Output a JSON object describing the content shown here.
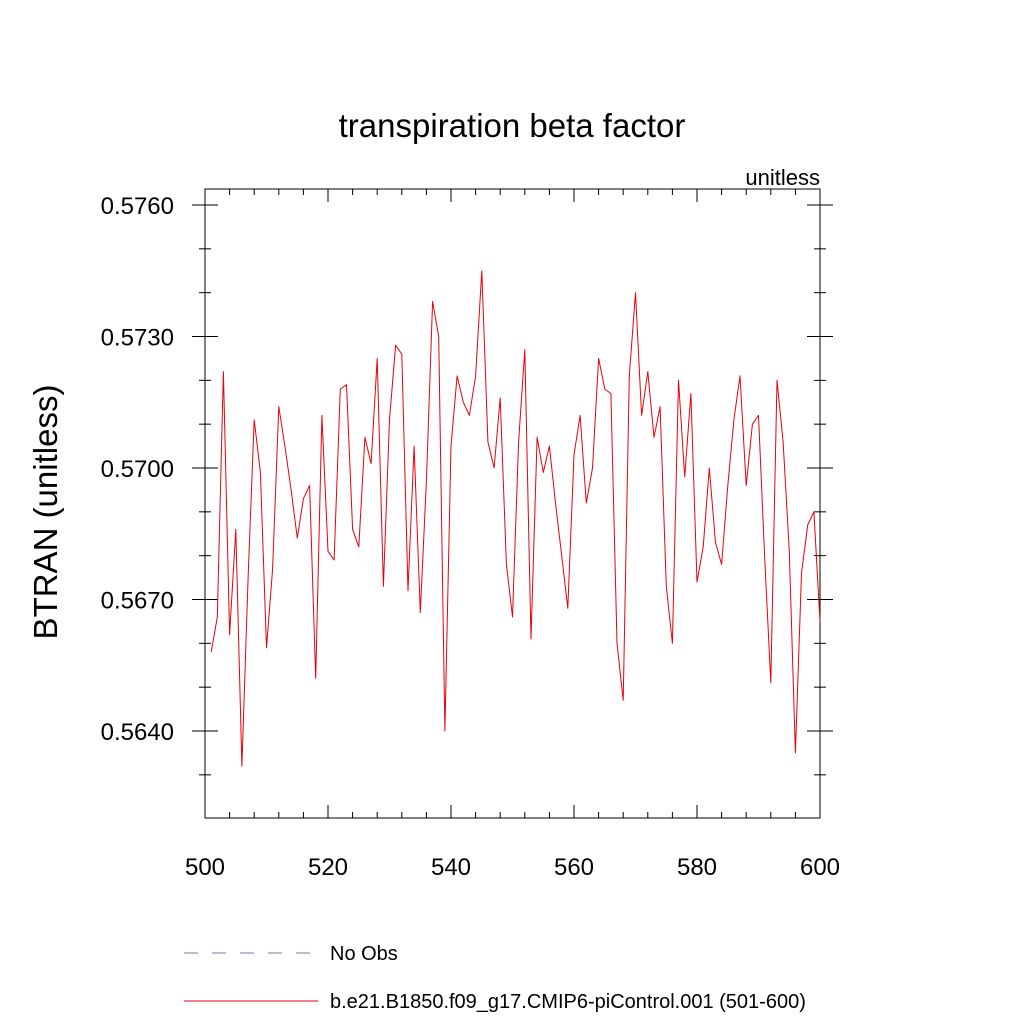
{
  "chart_data": {
    "type": "line",
    "title": "transpiration beta factor",
    "units_label": "unitless",
    "ylabel": "BTRAN  (unitless)",
    "xlabel": "",
    "xlim": [
      500,
      600
    ],
    "ylim": [
      0.562,
      0.5764
    ],
    "x_ticks": [
      500,
      520,
      540,
      560,
      580,
      600
    ],
    "x_tick_labels": [
      "500",
      "520",
      "540",
      "560",
      "580",
      "600"
    ],
    "x_minor_step": 4,
    "y_ticks": [
      0.564,
      0.567,
      0.57,
      0.573,
      0.576
    ],
    "y_tick_labels": [
      "0.5640",
      "0.5670",
      "0.5700",
      "0.5730",
      "0.5760"
    ],
    "y_minor_step": 0.001,
    "grid": false,
    "legend_position": "bottom",
    "legend": [
      {
        "label": "No Obs",
        "color": "#7b74b8",
        "style": "dashed"
      },
      {
        "label": "b.e21.B1850.f09_g17.CMIP6-piControl.001 (501-600)",
        "color": "#e8000b",
        "style": "solid"
      }
    ],
    "series": [
      {
        "name": "b.e21.B1850.f09_g17.CMIP6-piControl.001 (501-600)",
        "color": "#e8000b",
        "x": [
          501,
          502,
          503,
          504,
          505,
          506,
          507,
          508,
          509,
          510,
          511,
          512,
          513,
          514,
          515,
          516,
          517,
          518,
          519,
          520,
          521,
          522,
          523,
          524,
          525,
          526,
          527,
          528,
          529,
          530,
          531,
          532,
          533,
          534,
          535,
          536,
          537,
          538,
          539,
          540,
          541,
          542,
          543,
          544,
          545,
          546,
          547,
          548,
          549,
          550,
          551,
          552,
          553,
          554,
          555,
          556,
          557,
          558,
          559,
          560,
          561,
          562,
          563,
          564,
          565,
          566,
          567,
          568,
          569,
          570,
          571,
          572,
          573,
          574,
          575,
          576,
          577,
          578,
          579,
          580,
          581,
          582,
          583,
          584,
          585,
          586,
          587,
          588,
          589,
          590,
          591,
          592,
          593,
          594,
          595,
          596,
          597,
          598,
          599,
          600
        ],
        "y": [
          0.5658,
          0.5666,
          0.5722,
          0.5662,
          0.5686,
          0.5632,
          0.5675,
          0.5711,
          0.5699,
          0.5659,
          0.5677,
          0.5714,
          0.5705,
          0.5695,
          0.5684,
          0.5693,
          0.5696,
          0.5652,
          0.5712,
          0.5681,
          0.5679,
          0.5718,
          0.5719,
          0.5686,
          0.5682,
          0.5707,
          0.5701,
          0.5725,
          0.5673,
          0.5711,
          0.5728,
          0.5726,
          0.5672,
          0.5705,
          0.5667,
          0.5697,
          0.5738,
          0.573,
          0.564,
          0.5705,
          0.5721,
          0.5715,
          0.5712,
          0.5721,
          0.5745,
          0.5706,
          0.57,
          0.5716,
          0.5678,
          0.5666,
          0.5706,
          0.5727,
          0.5661,
          0.5707,
          0.5699,
          0.5705,
          0.5692,
          0.568,
          0.5668,
          0.5703,
          0.5712,
          0.5692,
          0.57,
          0.5725,
          0.5718,
          0.5717,
          0.566,
          0.5647,
          0.5721,
          0.574,
          0.5712,
          0.5722,
          0.5707,
          0.5714,
          0.5673,
          0.566,
          0.572,
          0.5698,
          0.5717,
          0.5674,
          0.5682,
          0.57,
          0.5683,
          0.5678,
          0.5696,
          0.5711,
          0.5721,
          0.5696,
          0.571,
          0.5712,
          0.568,
          0.5651,
          0.572,
          0.5706,
          0.5681,
          0.5635,
          0.5676,
          0.5687,
          0.569,
          0.5665
        ]
      }
    ]
  }
}
